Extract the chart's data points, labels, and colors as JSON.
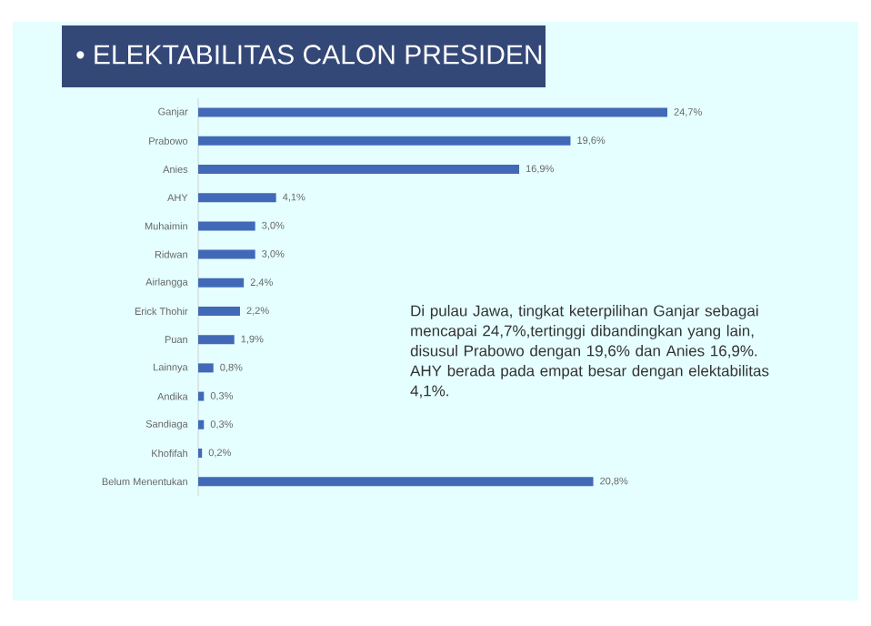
{
  "chart_data": {
    "type": "bar",
    "orientation": "horizontal",
    "title": "• ELEKTABILITAS CALON PRESIDEN",
    "categories": [
      "Ganjar",
      "Prabowo",
      "Anies",
      "AHY",
      "Muhaimin",
      "Ridwan",
      "Airlangga",
      "Erick Thohir",
      "Puan",
      "Lainnya",
      "Andika",
      "Sandiaga",
      "Khofifah",
      "Belum Menentukan"
    ],
    "values": [
      24.7,
      19.6,
      16.9,
      4.1,
      3.0,
      3.0,
      2.4,
      2.2,
      1.9,
      0.8,
      0.3,
      0.3,
      0.2,
      20.8
    ],
    "value_labels": [
      "24,7%",
      "19,6%",
      "16,9%",
      "4,1%",
      "3,0%",
      "3,0%",
      "2,4%",
      "2,2%",
      "1,9%",
      "0,8%",
      "0,3%",
      "0,3%",
      "0,2%",
      "20,8%"
    ],
    "color": "#4169b8",
    "annotations": [
      "Di pulau Jawa, tingkat keterpilihan Ganjar sebagai mencapai 24,7%,tertinggi dibandingkan yang lain, disusul Prabowo dengan 19,6% dan Anies 16,9%. AHY berada pada empat besar dengan elektabilitas 4,1%."
    ]
  }
}
